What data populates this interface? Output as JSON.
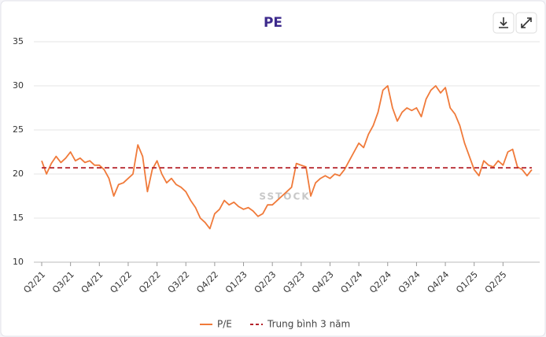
{
  "chart_data": {
    "type": "line",
    "title": "PE",
    "watermark": "SSTOCK",
    "categories": [
      "Q2/21",
      null,
      null,
      null,
      null,
      null,
      "Q3/21",
      null,
      null,
      null,
      null,
      null,
      "Q4/21",
      null,
      null,
      null,
      null,
      null,
      "Q1/22",
      null,
      null,
      null,
      null,
      null,
      "Q2/22",
      null,
      null,
      null,
      null,
      null,
      "Q3/22",
      null,
      null,
      null,
      null,
      null,
      "Q4/22",
      null,
      null,
      null,
      null,
      null,
      "Q1/23",
      null,
      null,
      null,
      null,
      null,
      "Q2/23",
      null,
      null,
      null,
      null,
      null,
      "Q3/23",
      null,
      null,
      null,
      null,
      null,
      "Q4/23",
      null,
      null,
      null,
      null,
      null,
      "Q1/24",
      null,
      null,
      null,
      null,
      null,
      "Q2/24",
      null,
      null,
      null,
      null,
      null,
      "Q3/24",
      null,
      null,
      null,
      null,
      null,
      "Q4/24",
      null,
      null,
      null,
      null,
      null,
      "Q1/25",
      null,
      null,
      null,
      null,
      null,
      "Q2/25",
      null,
      null,
      null,
      null,
      null,
      null
    ],
    "series": [
      {
        "name": "P/E",
        "color": "#f07a3a",
        "values": [
          21.5,
          20.0,
          21.2,
          22.0,
          21.3,
          21.8,
          22.5,
          21.5,
          21.8,
          21.3,
          21.5,
          21.0,
          21.0,
          20.5,
          19.5,
          17.5,
          18.8,
          19.0,
          19.5,
          20.0,
          23.3,
          22.0,
          18.0,
          20.5,
          21.5,
          20.0,
          19.0,
          19.5,
          18.8,
          18.5,
          18.0,
          17.0,
          16.2,
          15.0,
          14.5,
          13.8,
          15.5,
          16.0,
          17.0,
          16.5,
          16.8,
          16.3,
          16.0,
          16.2,
          15.8,
          15.2,
          15.5,
          16.5,
          16.5,
          17.0,
          17.5,
          18.0,
          18.5,
          21.2,
          21.0,
          20.8,
          17.5,
          19.0,
          19.5,
          19.8,
          19.5,
          20.0,
          19.8,
          20.5,
          21.5,
          22.5,
          23.5,
          23.0,
          24.5,
          25.5,
          27.0,
          29.5,
          30.0,
          27.5,
          26.0,
          27.0,
          27.5,
          27.2,
          27.5,
          26.5,
          28.5,
          29.5,
          30.0,
          29.2,
          29.8,
          27.5,
          26.8,
          25.5,
          23.5,
          22.0,
          20.5,
          19.8,
          21.5,
          21.0,
          20.8,
          21.5,
          21.0,
          22.5,
          22.8,
          20.8,
          20.5,
          19.8,
          20.5
        ]
      }
    ],
    "average": {
      "name": "Trung bình 3 năm",
      "color": "#b5232b",
      "value": 20.7
    },
    "ylim": [
      10,
      35
    ],
    "yticks": [
      10,
      15,
      20,
      25,
      30,
      35
    ],
    "grid": true
  }
}
